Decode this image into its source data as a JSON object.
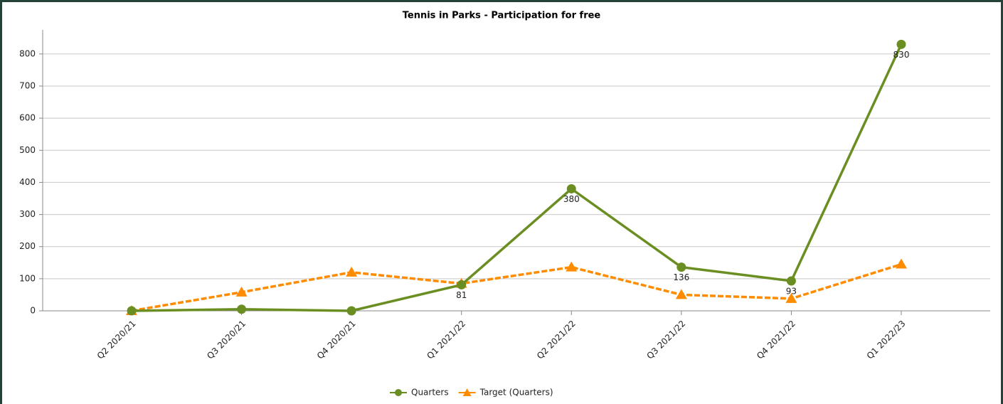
{
  "chart_data": {
    "type": "line",
    "title": "Tennis in Parks - Participation for free",
    "categories": [
      "Q2 2020/21",
      "Q3 2020/21",
      "Q4 2020/21",
      "Q1 2021/22",
      "Q2 2021/22",
      "Q3 2021/22",
      "Q4 2021/22",
      "Q1 2022/23"
    ],
    "series": [
      {
        "name": "Quarters",
        "color": "#6b8e23",
        "marker": "circle",
        "dashed": false,
        "values": [
          0,
          5,
          0,
          81,
          380,
          136,
          93,
          830
        ],
        "value_labels": [
          null,
          null,
          null,
          "81",
          "380",
          "136",
          "93",
          "830"
        ]
      },
      {
        "name": "Target (Quarters)",
        "color": "#ff8c00",
        "marker": "triangle",
        "dashed": true,
        "values": [
          0,
          58,
          120,
          85,
          136,
          50,
          38,
          145
        ]
      }
    ],
    "ylim": [
      0,
      875
    ],
    "yticks": [
      0,
      100,
      200,
      300,
      400,
      500,
      600,
      700,
      800
    ],
    "grid": true,
    "legend": "bottom"
  }
}
